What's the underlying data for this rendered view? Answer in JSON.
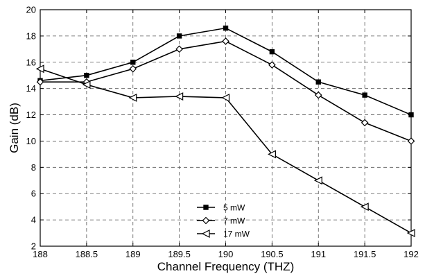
{
  "chart_data": {
    "type": "line",
    "title": "",
    "xlabel": "Channel Frequency (THZ)",
    "ylabel": "Gain (dB)",
    "xlim": [
      188,
      192
    ],
    "ylim": [
      2,
      20
    ],
    "xticks": [
      188,
      188.5,
      189,
      189.5,
      190,
      190.5,
      191,
      191.5,
      192
    ],
    "yticks": [
      2,
      4,
      6,
      8,
      10,
      12,
      14,
      16,
      18,
      20
    ],
    "grid": true,
    "legend_position": "bottom-center",
    "x": [
      188,
      188.5,
      189,
      189.5,
      190,
      190.5,
      191,
      191.5,
      192
    ],
    "series": [
      {
        "name": "5 mW",
        "marker": "square",
        "values": [
          14.6,
          15.0,
          16.0,
          18.0,
          18.6,
          16.8,
          14.5,
          13.5,
          12.0
        ]
      },
      {
        "name": "7 mW",
        "marker": "diamond",
        "values": [
          14.5,
          14.5,
          15.5,
          17.0,
          17.6,
          15.8,
          13.5,
          11.4,
          10.0
        ]
      },
      {
        "name": "17 mW",
        "marker": "triangle-left",
        "values": [
          15.5,
          14.3,
          13.3,
          13.4,
          13.3,
          9.0,
          7.0,
          5.0,
          3.0
        ]
      }
    ]
  }
}
